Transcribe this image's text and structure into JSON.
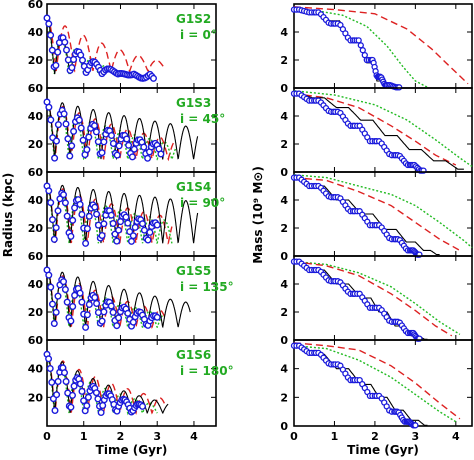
{
  "chart_data": {
    "type": "line",
    "left_column": {
      "ylabel": "Radius (kpc)",
      "xlabel": "Time (Gyr)",
      "xlim": [
        0,
        4.6
      ],
      "ylim": [
        0,
        60
      ],
      "xticks": [
        0,
        1,
        2,
        3,
        4
      ],
      "yticks": [
        20,
        40,
        60
      ],
      "yticks_top_panel": [
        20,
        40,
        60
      ]
    },
    "right_column": {
      "ylabel": "Mass (10⁹ M⊙)",
      "xlabel": "Time (Gyr)",
      "xlim": [
        0,
        4.4
      ],
      "ylim": [
        0,
        6
      ],
      "xticks": [
        0,
        1,
        2,
        3,
        4
      ],
      "yticks": [
        0,
        2,
        4
      ]
    },
    "panels": [
      {
        "name": "G1S2",
        "inclination": "i = 0°",
        "radius": {
          "black": {
            "start": 52,
            "peri": 10,
            "period": 0.42,
            "decay": 0.7,
            "tmax": 2.8
          },
          "green": {
            "start": 50,
            "peri": 10,
            "period": 0.4,
            "decay": 0.75,
            "tmax": 2.4
          },
          "red": {
            "start": 52,
            "peri": 12,
            "period": 0.5,
            "decay": 0.85,
            "tmax": 3.2
          },
          "blue": {
            "start": 50,
            "peri": 10,
            "period": 0.43,
            "decay": 0.72,
            "tmax": 2.9
          }
        },
        "mass": {
          "black": [
            [
              0,
              5.6
            ],
            [
              0.5,
              5.5
            ],
            [
              1.0,
              4.8
            ],
            [
              1.5,
              3.5
            ],
            [
              1.9,
              1.8
            ],
            [
              2.1,
              0.5
            ],
            [
              2.3,
              0.1
            ],
            [
              2.6,
              0.0
            ]
          ],
          "green": [
            [
              0,
              5.6
            ],
            [
              0.6,
              5.5
            ],
            [
              1.2,
              5.2
            ],
            [
              1.8,
              4.4
            ],
            [
              2.3,
              3.0
            ],
            [
              2.7,
              1.5
            ],
            [
              3.0,
              0.5
            ],
            [
              3.3,
              0.05
            ]
          ],
          "red": [
            [
              0,
              5.8
            ],
            [
              1.0,
              5.6
            ],
            [
              2.0,
              5.3
            ],
            [
              2.8,
              4.2
            ],
            [
              3.4,
              2.8
            ],
            [
              3.9,
              1.4
            ],
            [
              4.3,
              0.3
            ]
          ],
          "blue": [
            [
              0,
              5.6
            ],
            [
              0.5,
              5.4
            ],
            [
              1.0,
              4.6
            ],
            [
              1.5,
              3.4
            ],
            [
              1.9,
              2.0
            ],
            [
              2.1,
              0.8
            ],
            [
              2.3,
              0.2
            ],
            [
              2.6,
              0.05
            ]
          ]
        }
      },
      {
        "name": "G1S3",
        "inclination": "i = 45°",
        "radius": {
          "black": {
            "start": 52,
            "peri": 9,
            "period": 0.42,
            "decay": 0.95,
            "tmax": 4.1
          },
          "green": {
            "start": 50,
            "peri": 9,
            "period": 0.4,
            "decay": 0.9,
            "tmax": 3.5
          },
          "red": {
            "start": 52,
            "peri": 9,
            "period": 0.44,
            "decay": 0.9,
            "tmax": 3.5
          },
          "blue": {
            "start": 50,
            "peri": 9,
            "period": 0.42,
            "decay": 0.88,
            "tmax": 3.1
          }
        },
        "mass": {
          "black": [
            [
              0,
              5.6
            ],
            [
              0.6,
              5.3
            ],
            [
              1.2,
              4.6
            ],
            [
              1.8,
              3.7
            ],
            [
              2.4,
              2.6
            ],
            [
              3.0,
              1.6
            ],
            [
              3.6,
              0.8
            ],
            [
              4.2,
              0.2
            ]
          ],
          "green": [
            [
              0,
              5.8
            ],
            [
              1.0,
              5.5
            ],
            [
              2.0,
              4.8
            ],
            [
              2.8,
              3.7
            ],
            [
              3.5,
              2.3
            ],
            [
              4.1,
              1.0
            ],
            [
              4.4,
              0.4
            ]
          ],
          "red": [
            [
              0,
              5.6
            ],
            [
              0.8,
              5.3
            ],
            [
              1.6,
              4.6
            ],
            [
              2.4,
              3.3
            ],
            [
              3.0,
              2.2
            ],
            [
              3.5,
              1.2
            ],
            [
              4.0,
              0.5
            ]
          ],
          "blue": [
            [
              0,
              5.6
            ],
            [
              0.5,
              5.1
            ],
            [
              1.0,
              4.3
            ],
            [
              1.5,
              3.3
            ],
            [
              2.0,
              2.2
            ],
            [
              2.5,
              1.2
            ],
            [
              2.9,
              0.5
            ],
            [
              3.2,
              0.1
            ]
          ]
        }
      },
      {
        "name": "G1S4",
        "inclination": "i = 90°",
        "radius": {
          "black": {
            "start": 52,
            "peri": 9,
            "period": 0.42,
            "decay": 0.97,
            "tmax": 4.1
          },
          "green": {
            "start": 50,
            "peri": 9,
            "period": 0.4,
            "decay": 0.92,
            "tmax": 3.4
          },
          "red": {
            "start": 52,
            "peri": 9,
            "period": 0.44,
            "decay": 0.92,
            "tmax": 3.4
          },
          "blue": {
            "start": 50,
            "peri": 9,
            "period": 0.42,
            "decay": 0.9,
            "tmax": 3.0
          }
        },
        "mass": {
          "black": [
            [
              0,
              5.6
            ],
            [
              0.6,
              5.0
            ],
            [
              1.2,
              4.0
            ],
            [
              1.8,
              3.0
            ],
            [
              2.4,
              1.9
            ],
            [
              2.9,
              1.0
            ],
            [
              3.3,
              0.4
            ],
            [
              3.6,
              0.1
            ]
          ],
          "green": [
            [
              0,
              5.8
            ],
            [
              0.8,
              5.6
            ],
            [
              1.6,
              5.0
            ],
            [
              2.4,
              4.4
            ],
            [
              3.0,
              3.6
            ],
            [
              3.6,
              2.4
            ],
            [
              4.2,
              1.1
            ],
            [
              4.4,
              0.6
            ]
          ],
          "red": [
            [
              0,
              5.6
            ],
            [
              0.8,
              5.4
            ],
            [
              1.6,
              4.6
            ],
            [
              2.4,
              3.6
            ],
            [
              3.0,
              2.4
            ],
            [
              3.6,
              1.2
            ],
            [
              4.1,
              0.4
            ]
          ],
          "blue": [
            [
              0,
              5.6
            ],
            [
              0.5,
              5.0
            ],
            [
              1.0,
              4.2
            ],
            [
              1.5,
              3.2
            ],
            [
              2.0,
              2.2
            ],
            [
              2.5,
              1.2
            ],
            [
              2.9,
              0.4
            ],
            [
              3.1,
              0.1
            ]
          ]
        }
      },
      {
        "name": "G1S5",
        "inclination": "i = 135°",
        "radius": {
          "black": {
            "start": 52,
            "peri": 9,
            "period": 0.42,
            "decay": 0.93,
            "tmax": 3.9
          },
          "green": {
            "start": 50,
            "peri": 9,
            "period": 0.4,
            "decay": 0.88,
            "tmax": 3.2
          },
          "red": {
            "start": 52,
            "peri": 9,
            "period": 0.44,
            "decay": 0.88,
            "tmax": 3.2
          },
          "blue": {
            "start": 50,
            "peri": 9,
            "period": 0.42,
            "decay": 0.86,
            "tmax": 3.0
          }
        },
        "mass": {
          "black": [
            [
              0,
              5.6
            ],
            [
              0.6,
              5.0
            ],
            [
              1.2,
              4.0
            ],
            [
              1.8,
              3.0
            ],
            [
              2.2,
              2.0
            ],
            [
              2.6,
              1.0
            ],
            [
              3.0,
              0.3
            ],
            [
              3.3,
              0.05
            ]
          ],
          "green": [
            [
              0,
              5.6
            ],
            [
              0.8,
              5.4
            ],
            [
              1.6,
              4.8
            ],
            [
              2.4,
              3.8
            ],
            [
              3.0,
              2.6
            ],
            [
              3.6,
              1.3
            ],
            [
              4.1,
              0.4
            ]
          ],
          "red": [
            [
              0,
              5.6
            ],
            [
              0.8,
              5.3
            ],
            [
              1.6,
              4.6
            ],
            [
              2.4,
              3.3
            ],
            [
              3.0,
              2.1
            ],
            [
              3.5,
              1.0
            ],
            [
              3.9,
              0.3
            ]
          ],
          "blue": [
            [
              0,
              5.6
            ],
            [
              0.5,
              5.0
            ],
            [
              1.0,
              4.2
            ],
            [
              1.5,
              3.3
            ],
            [
              2.0,
              2.3
            ],
            [
              2.5,
              1.3
            ],
            [
              2.9,
              0.5
            ],
            [
              3.1,
              0.1
            ]
          ]
        }
      },
      {
        "name": "G1S6",
        "inclination": "i = 180°",
        "radius": {
          "black": {
            "start": 52,
            "peri": 9,
            "period": 0.42,
            "decay": 0.86,
            "tmax": 3.3
          },
          "green": {
            "start": 50,
            "peri": 9,
            "period": 0.4,
            "decay": 0.85,
            "tmax": 3.0
          },
          "red": {
            "start": 52,
            "peri": 9,
            "period": 0.44,
            "decay": 0.87,
            "tmax": 3.2
          },
          "blue": {
            "start": 50,
            "peri": 9,
            "period": 0.42,
            "decay": 0.82,
            "tmax": 2.6
          }
        },
        "mass": {
          "black": [
            [
              0,
              5.6
            ],
            [
              0.6,
              5.0
            ],
            [
              1.2,
              4.0
            ],
            [
              1.8,
              2.9
            ],
            [
              2.2,
              2.0
            ],
            [
              2.6,
              1.1
            ],
            [
              3.0,
              0.4
            ],
            [
              3.3,
              0.05
            ]
          ],
          "green": [
            [
              0,
              5.6
            ],
            [
              0.8,
              5.4
            ],
            [
              1.6,
              4.6
            ],
            [
              2.4,
              3.4
            ],
            [
              3.0,
              2.2
            ],
            [
              3.6,
              1.0
            ],
            [
              4.0,
              0.3
            ]
          ],
          "red": [
            [
              0,
              5.8
            ],
            [
              0.8,
              5.6
            ],
            [
              1.6,
              5.3
            ],
            [
              2.4,
              4.2
            ],
            [
              3.0,
              3.0
            ],
            [
              3.6,
              1.6
            ],
            [
              4.1,
              0.5
            ]
          ],
          "blue": [
            [
              0,
              5.6
            ],
            [
              0.5,
              5.1
            ],
            [
              1.0,
              4.3
            ],
            [
              1.5,
              3.2
            ],
            [
              2.0,
              2.1
            ],
            [
              2.5,
              1.0
            ],
            [
              2.8,
              0.3
            ],
            [
              3.0,
              0.05
            ]
          ]
        }
      }
    ],
    "colors": {
      "black": "#000000",
      "green": "#22bb22",
      "red": "#dd2222",
      "blue": "#1a1adb",
      "label": "#22aa22"
    }
  }
}
